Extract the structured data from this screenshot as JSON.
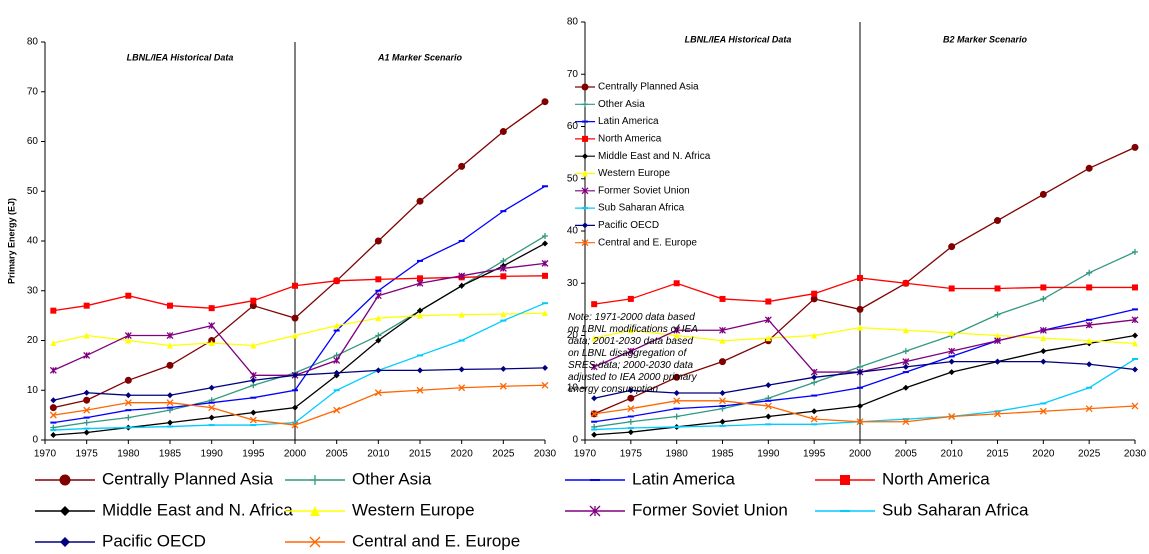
{
  "chart_data": [
    {
      "type": "line",
      "ylabel": "Primary Energy (EJ)",
      "annotations": [
        "LBNL/IEA Historical Data",
        "A1 Marker Scenario"
      ],
      "xlim": [
        1970,
        2030
      ],
      "xticks": [
        1970,
        1975,
        1980,
        1985,
        1990,
        1995,
        2000,
        2005,
        2010,
        2015,
        2020,
        2025,
        2030
      ],
      "ylim": [
        0,
        80
      ],
      "yticks": [
        0,
        10,
        20,
        30,
        40,
        50,
        60,
        70,
        80
      ],
      "vlines": [
        2000
      ],
      "legend": "bottom",
      "x": [
        1971,
        1975,
        1980,
        1985,
        1990,
        1995,
        2000,
        2005,
        2010,
        2015,
        2020,
        2025,
        2030
      ],
      "series": [
        {
          "name": "Centrally Planned Asia",
          "color": "#800000",
          "marker": "circle",
          "values": [
            6.5,
            8,
            12,
            15,
            20,
            27,
            24.5,
            32,
            40,
            48,
            55,
            62,
            68
          ]
        },
        {
          "name": "Other Asia",
          "color": "#339980",
          "marker": "plus",
          "values": [
            2.5,
            3.5,
            4.5,
            6,
            8,
            11,
            13.5,
            17,
            21,
            26,
            31,
            36,
            41
          ]
        },
        {
          "name": "Latin America",
          "color": "#0000ff",
          "marker": "dash",
          "values": [
            3.5,
            4.5,
            6,
            6.5,
            7.5,
            8.5,
            10,
            22,
            30,
            36,
            40,
            46,
            51
          ]
        },
        {
          "name": "North America",
          "color": "#ff0000",
          "marker": "square",
          "values": [
            26,
            27,
            29,
            27,
            26.5,
            28,
            31,
            32,
            32.3,
            32.5,
            32.7,
            32.9,
            33
          ]
        },
        {
          "name": "Middle East and N. Africa",
          "color": "#000000",
          "marker": "diamond",
          "values": [
            1,
            1.5,
            2.5,
            3.5,
            4.5,
            5.5,
            6.5,
            13,
            20,
            26,
            31,
            35,
            39.5
          ]
        },
        {
          "name": "Western Europe",
          "color": "#ffff00",
          "marker": "triangle",
          "values": [
            19.5,
            21,
            20,
            19,
            19.5,
            19,
            21,
            23,
            24.5,
            25,
            25.2,
            25.3,
            25.5
          ]
        },
        {
          "name": "Former Soviet Union",
          "color": "#800080",
          "marker": "star",
          "values": [
            14,
            17,
            21,
            21,
            23,
            13,
            13,
            16,
            29,
            31.5,
            33,
            34.5,
            35.5
          ]
        },
        {
          "name": "Sub Saharan Africa",
          "color": "#00ccff",
          "marker": "dash",
          "values": [
            2,
            2.3,
            2.5,
            2.7,
            3,
            3,
            3.5,
            10,
            14,
            17,
            20,
            24,
            27.5
          ]
        },
        {
          "name": "Pacific OECD",
          "color": "#000080",
          "marker": "diamond",
          "values": [
            8,
            9.5,
            9,
            9,
            10.5,
            12,
            13,
            13.5,
            14,
            14,
            14.2,
            14.3,
            14.5
          ]
        },
        {
          "name": "Central and E. Europe",
          "color": "#ff6600",
          "marker": "x",
          "values": [
            5,
            6,
            7.5,
            7.5,
            6.5,
            4,
            3,
            6,
            9.5,
            10,
            10.5,
            10.8,
            11
          ]
        }
      ]
    },
    {
      "type": "line",
      "annotations": [
        "LBNL/IEA Historical Data",
        "B2 Marker Scenario"
      ],
      "note": "Note: 1971-2000 data based on LBNL modifications of IEA data; 2001-2030 data based on LBNL disaggregation of SRES data; 2000-2030 data adjusted to IEA 2000 primary energy consumption",
      "xlim": [
        1970,
        2030
      ],
      "xticks": [
        1970,
        1975,
        1980,
        1985,
        1990,
        1995,
        2000,
        2005,
        2010,
        2015,
        2020,
        2025,
        2030
      ],
      "ylim": [
        0,
        80
      ],
      "yticks": [
        0,
        10,
        20,
        30,
        40,
        50,
        60,
        70,
        80
      ],
      "vlines": [
        2000
      ],
      "legend": "upper left",
      "x": [
        1971,
        1975,
        1980,
        1985,
        1990,
        1995,
        2000,
        2005,
        2010,
        2015,
        2020,
        2025,
        2030
      ],
      "series": [
        {
          "name": "Centrally Planned Asia",
          "color": "#800000",
          "marker": "circle",
          "values": [
            5,
            8,
            12,
            15,
            19,
            27,
            25,
            30,
            37,
            42,
            47,
            52,
            56
          ]
        },
        {
          "name": "Other Asia",
          "color": "#339980",
          "marker": "plus",
          "values": [
            2.5,
            3.5,
            4.5,
            6,
            8,
            11,
            14,
            17,
            20,
            24,
            27,
            32,
            36
          ]
        },
        {
          "name": "Latin America",
          "color": "#0000ff",
          "marker": "dash",
          "values": [
            3.5,
            4.5,
            6,
            6.5,
            7.5,
            8.5,
            10,
            13,
            16,
            19,
            21,
            23,
            25
          ]
        },
        {
          "name": "North America",
          "color": "#ff0000",
          "marker": "square",
          "values": [
            26,
            27,
            30,
            27,
            26.5,
            28,
            31,
            30,
            29,
            29,
            29.2,
            29.2,
            29.2
          ]
        },
        {
          "name": "Middle East and N. Africa",
          "color": "#000000",
          "marker": "diamond",
          "values": [
            1,
            1.5,
            2.5,
            3.5,
            4.5,
            5.5,
            6.5,
            10,
            13,
            15,
            17,
            18.5,
            20
          ]
        },
        {
          "name": "Western Europe",
          "color": "#ffff00",
          "marker": "triangle",
          "values": [
            19.5,
            21,
            20,
            19,
            19.5,
            20,
            21.5,
            21,
            20.5,
            20,
            19.5,
            19,
            18.5
          ]
        },
        {
          "name": "Former Soviet Union",
          "color": "#800080",
          "marker": "star",
          "values": [
            14,
            17,
            21,
            21,
            23,
            13,
            13,
            15,
            17,
            19,
            21,
            22,
            23
          ]
        },
        {
          "name": "Sub Saharan Africa",
          "color": "#00ccff",
          "marker": "dash",
          "values": [
            2,
            2.3,
            2.5,
            2.7,
            3,
            3,
            3.5,
            4,
            4.5,
            5.5,
            7,
            10,
            15.5
          ]
        },
        {
          "name": "Pacific OECD",
          "color": "#000080",
          "marker": "diamond",
          "values": [
            8,
            9.5,
            9,
            9,
            10.5,
            12,
            13,
            14,
            15,
            15,
            15,
            14.5,
            13.5
          ]
        },
        {
          "name": "Central and E. Europe",
          "color": "#ff6600",
          "marker": "x",
          "values": [
            5,
            6,
            7.5,
            7.5,
            6.5,
            4,
            3.5,
            3.5,
            4.5,
            5,
            5.5,
            6,
            6.5
          ]
        }
      ]
    }
  ]
}
